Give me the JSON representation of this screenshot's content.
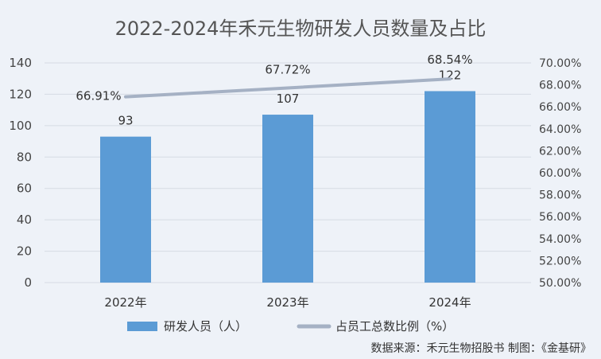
{
  "colors": {
    "background": "#eef2f8",
    "bar": "#5b9bd5",
    "line": "#a5b1c4",
    "grid": "#d6dbe3"
  },
  "chart_data": {
    "type": "bar",
    "title": "2022-2024年禾元生物研发人员数量及占比",
    "categories": [
      "2022年",
      "2023年",
      "2024年"
    ],
    "series": [
      {
        "name": "研发人员（人）",
        "type": "bar",
        "axis": "left",
        "values": [
          93,
          107,
          122
        ],
        "labels": [
          "93",
          "107",
          "122"
        ]
      },
      {
        "name": "占员工总数比例（%）",
        "type": "line",
        "axis": "right",
        "values": [
          66.91,
          67.72,
          68.54
        ],
        "labels": [
          "66.91%",
          "67.72%",
          "68.54%"
        ]
      }
    ],
    "y_left": {
      "min": 0,
      "max": 140,
      "ticks": [
        "0",
        "20",
        "40",
        "60",
        "80",
        "100",
        "120",
        "140"
      ]
    },
    "y_right": {
      "min": 50,
      "max": 70,
      "ticks": [
        "50.00%",
        "52.00%",
        "54.00%",
        "56.00%",
        "58.00%",
        "60.00%",
        "62.00%",
        "64.00%",
        "66.00%",
        "68.00%",
        "70.00%"
      ]
    },
    "grid": true,
    "legend_position": "bottom",
    "source": "数据来源：禾元生物招股书    制图：《金基研》"
  }
}
